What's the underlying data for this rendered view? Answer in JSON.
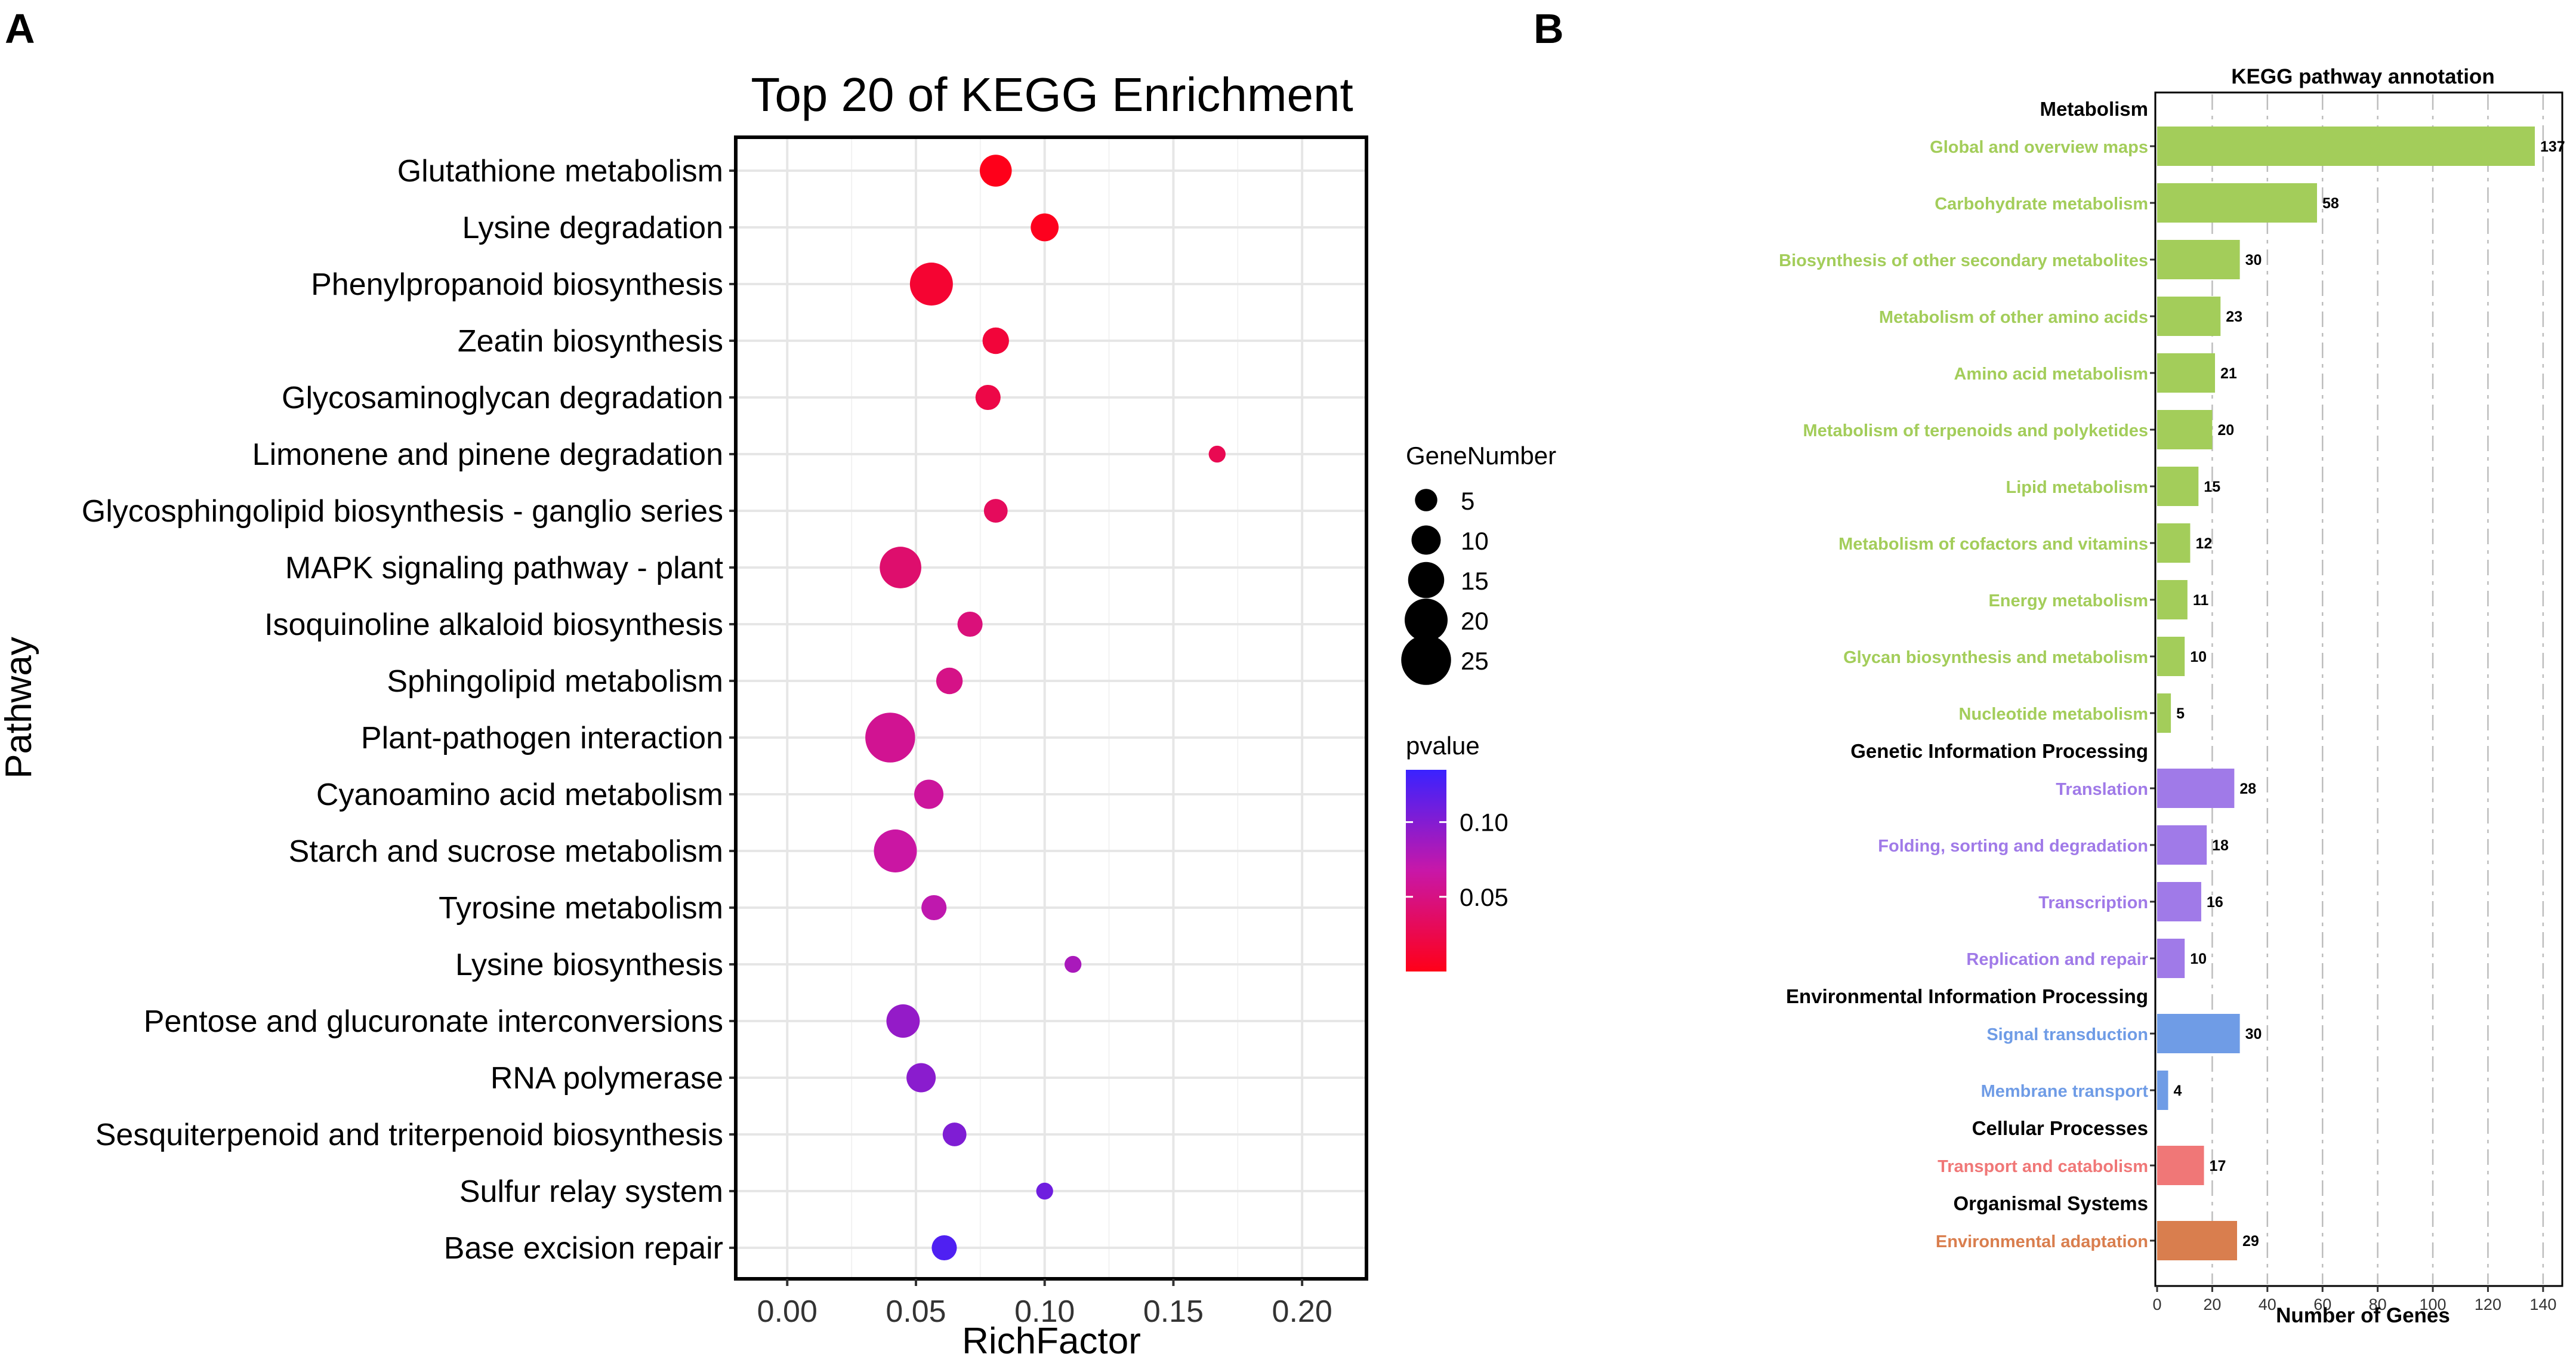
{
  "panel_labels": [
    "A",
    "B"
  ],
  "chart_data": [
    {
      "type": "scatter",
      "title": "Top 20 of KEGG Enrichment",
      "xlabel": "RichFactor",
      "ylabel": "Pathway",
      "xlim": [
        -0.02,
        0.225
      ],
      "xticks": [
        0.0,
        0.05,
        0.1,
        0.15,
        0.2
      ],
      "xtick_labels": [
        "0.00",
        "0.05",
        "0.10",
        "0.15",
        "0.20"
      ],
      "grid": true,
      "categories": [
        "Glutathione metabolism",
        "Lysine degradation",
        "Phenylpropanoid biosynthesis",
        "Zeatin biosynthesis",
        "Glycosaminoglycan degradation",
        "Limonene and pinene degradation",
        "Glycosphingolipid biosynthesis - ganglio series",
        "MAPK signaling pathway - plant",
        "Isoquinoline alkaloid biosynthesis",
        "Sphingolipid metabolism",
        "Plant-pathogen interaction",
        "Cyanoamino acid metabolism",
        "Starch and sucrose metabolism",
        "Tyrosine metabolism",
        "Lysine biosynthesis",
        "Pentose and glucuronate interconversions",
        "RNA polymerase",
        "Sesquiterpenoid and triterpenoid biosynthesis",
        "Sulfur relay system",
        "Base excision repair"
      ],
      "rich_factor": [
        0.081,
        0.1,
        0.056,
        0.081,
        0.078,
        0.167,
        0.081,
        0.044,
        0.071,
        0.063,
        0.04,
        0.055,
        0.042,
        0.057,
        0.111,
        0.045,
        0.052,
        0.065,
        0.1,
        0.061
      ],
      "gene_number": [
        12,
        9,
        20,
        8,
        7,
        1,
        6,
        19,
        7,
        8,
        25,
        10,
        20,
        7,
        1,
        13,
        10,
        6,
        1,
        7
      ],
      "pvalue": [
        0.001,
        0.003,
        0.012,
        0.016,
        0.022,
        0.027,
        0.032,
        0.04,
        0.046,
        0.052,
        0.057,
        0.062,
        0.065,
        0.072,
        0.082,
        0.092,
        0.097,
        0.102,
        0.11,
        0.125
      ],
      "legend_size": {
        "title": "GeneNumber",
        "values": [
          5,
          10,
          15,
          20,
          25
        ],
        "labels": [
          "5",
          "10",
          "15",
          "20",
          "25"
        ]
      },
      "legend_color": {
        "title": "pvalue",
        "range": [
          0,
          0.135
        ],
        "ticks": [
          0.05,
          0.1
        ],
        "tick_labels": [
          "0.05",
          "0.10"
        ],
        "low_color": "#ff0018",
        "mid_color": "#c817a8",
        "high_color": "#3a22ff"
      },
      "legend_placement": "right"
    },
    {
      "type": "bar",
      "orientation": "horizontal",
      "title": "KEGG pathway annotation",
      "xlabel": "Number of Genes",
      "xlim": [
        0,
        145
      ],
      "xticks": [
        0,
        20,
        40,
        60,
        80,
        100,
        120,
        140
      ],
      "xtick_labels": [
        "0",
        "20",
        "40",
        "60",
        "80",
        "100",
        "120",
        "140"
      ],
      "grid": "vertical dashed",
      "groups": [
        {
          "name": "Metabolism",
          "color": "#a3cd5a",
          "items": [
            {
              "label": "Global and overview maps",
              "value": 137
            },
            {
              "label": "Carbohydrate metabolism",
              "value": 58
            },
            {
              "label": "Biosynthesis of other secondary metabolites",
              "value": 30
            },
            {
              "label": "Metabolism of other amino acids",
              "value": 23
            },
            {
              "label": "Amino acid metabolism",
              "value": 21
            },
            {
              "label": "Metabolism of terpenoids and polyketides",
              "value": 20
            },
            {
              "label": "Lipid metabolism",
              "value": 15
            },
            {
              "label": "Metabolism of cofactors and vitamins",
              "value": 12
            },
            {
              "label": "Energy metabolism",
              "value": 11
            },
            {
              "label": "Glycan biosynthesis and metabolism",
              "value": 10
            },
            {
              "label": "Nucleotide metabolism",
              "value": 5
            }
          ]
        },
        {
          "name": "Genetic Information Processing",
          "color": "#a07ae8",
          "items": [
            {
              "label": "Translation",
              "value": 28
            },
            {
              "label": "Folding, sorting and degradation",
              "value": 18
            },
            {
              "label": "Transcription",
              "value": 16
            },
            {
              "label": "Replication and repair",
              "value": 10
            }
          ]
        },
        {
          "name": "Environmental Information Processing",
          "color": "#6f9ce6",
          "items": [
            {
              "label": "Signal transduction",
              "value": 30
            },
            {
              "label": "Membrane transport",
              "value": 4
            }
          ]
        },
        {
          "name": "Cellular Processes",
          "color": "#f07777",
          "items": [
            {
              "label": "Transport and catabolism",
              "value": 17
            }
          ]
        },
        {
          "name": "Organismal Systems",
          "color": "#d97e4e",
          "items": [
            {
              "label": "Environmental adaptation",
              "value": 29
            }
          ]
        }
      ]
    }
  ]
}
